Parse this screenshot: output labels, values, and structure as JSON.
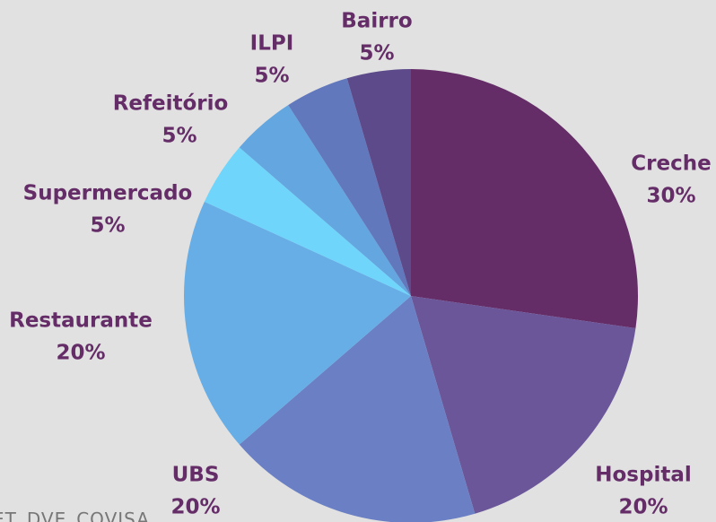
{
  "chart_data": {
    "type": "pie",
    "categories": [
      "Creche",
      "Hospital",
      "UBS",
      "Restaurante",
      "Supermercado",
      "Refeitório",
      "ILPI",
      "Bairro"
    ],
    "values": [
      30,
      20,
      20,
      20,
      5,
      5,
      5,
      5
    ],
    "value_labels": [
      "30%",
      "20%",
      "20%",
      "20%",
      "5%",
      "5%",
      "5%",
      "5%"
    ],
    "colors": [
      "#652d68",
      "#6a5699",
      "#6b80c4",
      "#67aee6",
      "#6fd5fb",
      "#63a6e0",
      "#6278bd",
      "#5c4a8a"
    ],
    "source": "ET_DVE_COVISA"
  }
}
